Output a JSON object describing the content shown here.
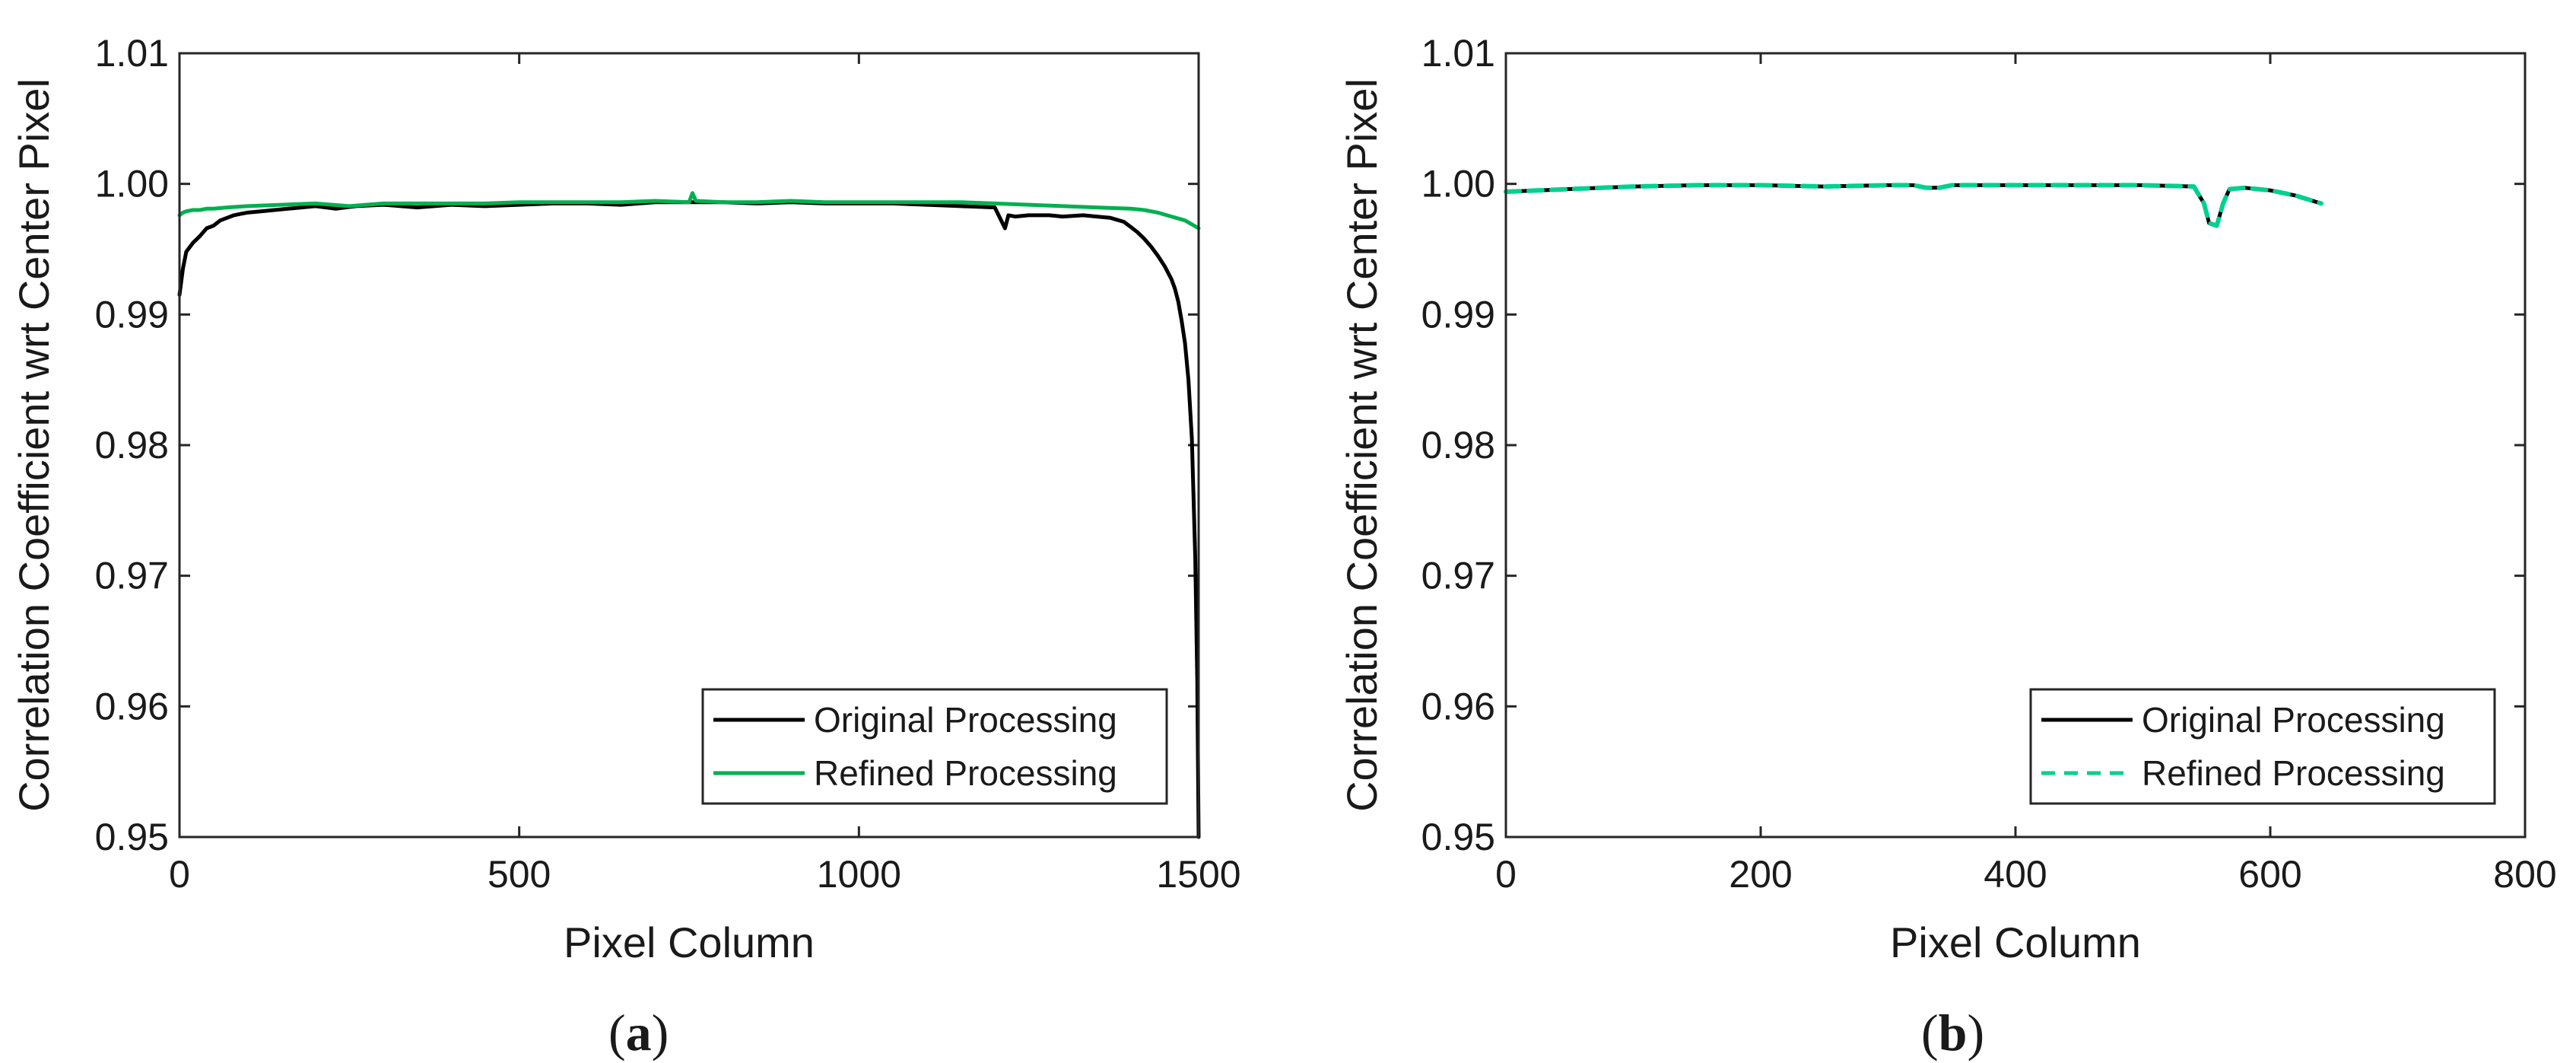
{
  "figure": {
    "panel_labels": [
      {
        "prefix": "(",
        "letter": "a",
        "suffix": ")"
      },
      {
        "prefix": "(",
        "letter": "b",
        "suffix": ")"
      }
    ]
  },
  "chart_data": [
    {
      "type": "line",
      "panel": "a",
      "title": "",
      "xlabel": "Pixel Column",
      "ylabel": "Correlation Coefficient wrt Center Pixel",
      "xlim": [
        0,
        1500
      ],
      "ylim": [
        0.95,
        1.01
      ],
      "xticks": [
        0,
        500,
        1000,
        1500
      ],
      "xtick_labels": [
        "0",
        "500",
        "1000",
        "1500"
      ],
      "yticks": [
        0.95,
        0.96,
        0.97,
        0.98,
        0.99,
        1.0,
        1.01
      ],
      "ytick_labels": [
        "0.95",
        "0.96",
        "0.97",
        "0.98",
        "0.99",
        "1.00",
        "1.01"
      ],
      "grid": false,
      "legend_position": "bottom-right",
      "series": [
        {
          "name": "Original Processing",
          "color": "#000000",
          "dash": "solid",
          "x": [
            0,
            5,
            10,
            20,
            30,
            40,
            50,
            60,
            70,
            80,
            90,
            100,
            120,
            140,
            160,
            180,
            200,
            230,
            260,
            300,
            350,
            400,
            450,
            500,
            550,
            600,
            650,
            700,
            750,
            800,
            850,
            900,
            950,
            1000,
            1050,
            1100,
            1150,
            1200,
            1215,
            1220,
            1230,
            1250,
            1280,
            1300,
            1330,
            1350,
            1370,
            1390,
            1400,
            1410,
            1420,
            1430,
            1440,
            1450,
            1460,
            1465,
            1470,
            1475,
            1480,
            1485,
            1490,
            1495,
            1498,
            1500
          ],
          "y": [
            0.9915,
            0.9935,
            0.9948,
            0.9955,
            0.996,
            0.9966,
            0.9968,
            0.9972,
            0.9974,
            0.9976,
            0.9977,
            0.9978,
            0.9979,
            0.998,
            0.9981,
            0.9982,
            0.9983,
            0.9981,
            0.9983,
            0.9984,
            0.9982,
            0.9984,
            0.9983,
            0.9984,
            0.9985,
            0.9985,
            0.9984,
            0.9986,
            0.9986,
            0.9986,
            0.9985,
            0.9986,
            0.9985,
            0.9985,
            0.9985,
            0.9984,
            0.9983,
            0.9982,
            0.9966,
            0.9976,
            0.9975,
            0.9976,
            0.9976,
            0.9975,
            0.9976,
            0.9975,
            0.9974,
            0.9971,
            0.9967,
            0.9963,
            0.9958,
            0.9952,
            0.9945,
            0.9937,
            0.9927,
            0.992,
            0.991,
            0.9895,
            0.9878,
            0.985,
            0.9805,
            0.9715,
            0.962,
            0.95
          ]
        },
        {
          "name": "Refined Processing",
          "color": "#00B050",
          "dash": "solid",
          "x": [
            0,
            5,
            10,
            20,
            30,
            40,
            50,
            70,
            100,
            150,
            200,
            250,
            300,
            350,
            400,
            450,
            500,
            550,
            600,
            650,
            700,
            750,
            755,
            760,
            800,
            850,
            900,
            950,
            1000,
            1050,
            1100,
            1150,
            1200,
            1250,
            1300,
            1350,
            1400,
            1420,
            1440,
            1460,
            1480,
            1500
          ],
          "y": [
            0.9976,
            0.9978,
            0.9979,
            0.998,
            0.998,
            0.9981,
            0.9981,
            0.9982,
            0.9983,
            0.9984,
            0.9985,
            0.9983,
            0.9985,
            0.9985,
            0.9985,
            0.9985,
            0.9986,
            0.9986,
            0.9986,
            0.9986,
            0.9987,
            0.9986,
            0.9993,
            0.9987,
            0.9986,
            0.9986,
            0.9987,
            0.9986,
            0.9986,
            0.9986,
            0.9986,
            0.9986,
            0.9985,
            0.9984,
            0.9983,
            0.9982,
            0.9981,
            0.998,
            0.9978,
            0.9975,
            0.9972,
            0.9966
          ]
        }
      ]
    },
    {
      "type": "line",
      "panel": "b",
      "title": "",
      "xlabel": "Pixel Column",
      "ylabel": "Correlation Coefficient wrt Center Pixel",
      "xlim": [
        0,
        800
      ],
      "ylim": [
        0.95,
        1.01
      ],
      "xticks": [
        0,
        200,
        400,
        600,
        800
      ],
      "xtick_labels": [
        "0",
        "200",
        "400",
        "600",
        "800"
      ],
      "yticks": [
        0.95,
        0.96,
        0.97,
        0.98,
        0.99,
        1.0,
        1.01
      ],
      "ytick_labels": [
        "0.95",
        "0.96",
        "0.97",
        "0.98",
        "0.99",
        "1.00",
        "1.01"
      ],
      "grid": false,
      "legend_position": "bottom-right",
      "series": [
        {
          "name": "Original Processing",
          "color": "#000000",
          "dash": "solid",
          "x": [
            0,
            50,
            100,
            150,
            200,
            250,
            300,
            320,
            330,
            340,
            350,
            400,
            450,
            500,
            540,
            548,
            552,
            558,
            563,
            568,
            580,
            600,
            620,
            640
          ],
          "y": [
            0.9994,
            0.9996,
            0.9998,
            0.9999,
            0.9999,
            0.9998,
            0.9999,
            0.9999,
            0.9997,
            0.9997,
            0.9999,
            0.9999,
            0.9999,
            0.9999,
            0.9998,
            0.9985,
            0.997,
            0.9968,
            0.9985,
            0.9996,
            0.9997,
            0.9995,
            0.9991,
            0.9985
          ]
        },
        {
          "name": "Refined Processing",
          "color": "#00D090",
          "dash": "dashed",
          "x": [
            0,
            50,
            100,
            150,
            200,
            250,
            300,
            320,
            330,
            340,
            350,
            400,
            450,
            500,
            540,
            548,
            552,
            558,
            563,
            568,
            580,
            600,
            620,
            640
          ],
          "y": [
            0.9994,
            0.9996,
            0.9998,
            0.9999,
            0.9999,
            0.9998,
            0.9999,
            0.9999,
            0.9997,
            0.9997,
            0.9999,
            0.9999,
            0.9999,
            0.9999,
            0.9998,
            0.9985,
            0.997,
            0.9968,
            0.9985,
            0.9996,
            0.9997,
            0.9995,
            0.9991,
            0.9985
          ]
        }
      ]
    }
  ]
}
